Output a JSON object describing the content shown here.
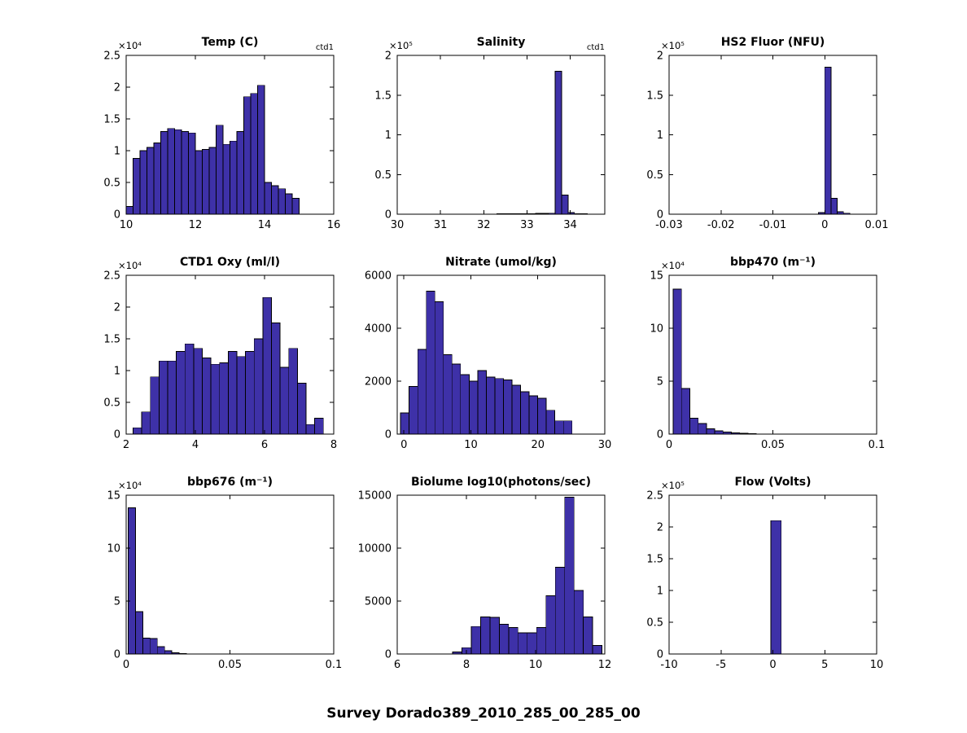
{
  "figure_title": "Survey Dorado389_2010_285_00_285_00",
  "style": {
    "bar_face_color": "#3E31A8",
    "bar_edge_color": "#000000",
    "axis_color": "#000000"
  },
  "chart_data": [
    {
      "type": "bar",
      "title": "Temp (C)",
      "annotation": "ctd1",
      "exponent_label": "×10⁴",
      "xlim": [
        10,
        16
      ],
      "xticks": [
        10,
        12,
        14,
        16
      ],
      "xtick_labels": [
        "10",
        "12",
        "14",
        "16"
      ],
      "ylim": [
        0,
        2.5
      ],
      "yticks": [
        0,
        0.5,
        1,
        1.5,
        2,
        2.5
      ],
      "ytick_labels": [
        "0",
        "0.5",
        "1",
        "1.5",
        "2",
        "2.5"
      ],
      "bin_start": 10.0,
      "bin_width": 0.2,
      "values": [
        0.12,
        0.88,
        1.0,
        1.05,
        1.12,
        1.3,
        1.35,
        1.33,
        1.3,
        1.28,
        1.0,
        1.02,
        1.05,
        1.4,
        1.1,
        1.15,
        1.3,
        1.85,
        1.9,
        2.03,
        0.5,
        0.45,
        0.4,
        0.32,
        0.25
      ]
    },
    {
      "type": "bar",
      "title": "Salinity",
      "annotation": "ctd1",
      "exponent_label": "×10⁵",
      "xlim": [
        30,
        34.8
      ],
      "xticks": [
        30,
        31,
        32,
        33,
        34
      ],
      "xtick_labels": [
        "30",
        "31",
        "32",
        "33",
        "34"
      ],
      "ylim": [
        0,
        2
      ],
      "yticks": [
        0,
        0.5,
        1,
        1.5,
        2
      ],
      "ytick_labels": [
        "0",
        "0.5",
        "1",
        "1.5",
        "2"
      ],
      "bin_start": 32.3,
      "bin_width": 0.15,
      "values": [
        0.004,
        0.004,
        0.005,
        0.006,
        0.007,
        0.008,
        0.009,
        0.01,
        0.012,
        1.8,
        0.24,
        0.02,
        0.008,
        0.004
      ]
    },
    {
      "type": "bar",
      "title": "HS2 Fluor (NFU)",
      "annotation": "",
      "exponent_label": "×10⁵",
      "xlim": [
        -0.03,
        0.01
      ],
      "xticks": [
        -0.03,
        -0.02,
        -0.01,
        0,
        0.01
      ],
      "xtick_labels": [
        "-0.03",
        "-0.02",
        "-0.01",
        "0",
        "0.01"
      ],
      "ylim": [
        0,
        2
      ],
      "yticks": [
        0,
        0.5,
        1,
        1.5,
        2
      ],
      "ytick_labels": [
        "0",
        "0.5",
        "1",
        "1.5",
        "2"
      ],
      "bin_start": -0.0012,
      "bin_width": 0.0012,
      "values": [
        0.02,
        1.85,
        0.2,
        0.03,
        0.012
      ]
    },
    {
      "type": "bar",
      "title": "CTD1 Oxy (ml/l)",
      "annotation": "",
      "exponent_label": "×10⁴",
      "xlim": [
        2,
        8
      ],
      "xticks": [
        2,
        4,
        6,
        8
      ],
      "xtick_labels": [
        "2",
        "4",
        "6",
        "8"
      ],
      "ylim": [
        0,
        2.5
      ],
      "yticks": [
        0,
        0.5,
        1,
        1.5,
        2,
        2.5
      ],
      "ytick_labels": [
        "0",
        "0.5",
        "1",
        "1.5",
        "2",
        "2.5"
      ],
      "bin_start": 2.2,
      "bin_width": 0.25,
      "values": [
        0.1,
        0.35,
        0.9,
        1.15,
        1.15,
        1.3,
        1.42,
        1.35,
        1.2,
        1.1,
        1.12,
        1.3,
        1.22,
        1.3,
        1.5,
        2.15,
        1.75,
        1.05,
        1.35,
        0.8,
        0.15,
        0.25
      ]
    },
    {
      "type": "bar",
      "title": "Nitrate (umol/kg)",
      "annotation": "",
      "exponent_label": "",
      "xlim": [
        -1,
        30
      ],
      "xticks": [
        0,
        10,
        20,
        30
      ],
      "xtick_labels": [
        "0",
        "10",
        "20",
        "30"
      ],
      "ylim": [
        0,
        6000
      ],
      "yticks": [
        0,
        2000,
        4000,
        6000
      ],
      "ytick_labels": [
        "0",
        "2000",
        "4000",
        "6000"
      ],
      "bin_start": -0.5,
      "bin_width": 1.28,
      "values": [
        800,
        1800,
        3200,
        5400,
        5000,
        3000,
        2650,
        2250,
        2000,
        2400,
        2150,
        2100,
        2050,
        1850,
        1600,
        1450,
        1350,
        900,
        500,
        500
      ]
    },
    {
      "type": "bar",
      "title": "bbp470 (m⁻¹)",
      "annotation": "",
      "exponent_label": "×10⁴",
      "xlim": [
        0,
        0.1
      ],
      "xticks": [
        0,
        0.05,
        0.1
      ],
      "xtick_labels": [
        "0",
        "0.05",
        "0.1"
      ],
      "ylim": [
        0,
        15
      ],
      "yticks": [
        0,
        5,
        10,
        15
      ],
      "ytick_labels": [
        "0",
        "5",
        "10",
        "15"
      ],
      "bin_start": 0.002,
      "bin_width": 0.004,
      "values": [
        13.7,
        4.3,
        1.5,
        1.0,
        0.5,
        0.3,
        0.2,
        0.12,
        0.08,
        0.05
      ]
    },
    {
      "type": "bar",
      "title": "bbp676 (m⁻¹)",
      "annotation": "",
      "exponent_label": "×10⁴",
      "xlim": [
        0,
        0.1
      ],
      "xticks": [
        0,
        0.05,
        0.1
      ],
      "xtick_labels": [
        "0",
        "0.05",
        "0.1"
      ],
      "ylim": [
        0,
        15
      ],
      "yticks": [
        0,
        5,
        10,
        15
      ],
      "ytick_labels": [
        "0",
        "5",
        "10",
        "15"
      ],
      "bin_start": 0.001,
      "bin_width": 0.0035,
      "values": [
        13.8,
        4.0,
        1.5,
        1.45,
        0.7,
        0.3,
        0.12,
        0.06
      ]
    },
    {
      "type": "bar",
      "title": "Biolume log10(photons/sec)",
      "annotation": "",
      "exponent_label": "",
      "xlim": [
        6,
        12
      ],
      "xticks": [
        6,
        8,
        10,
        12
      ],
      "xtick_labels": [
        "6",
        "8",
        "10",
        "12"
      ],
      "ylim": [
        0,
        15000
      ],
      "yticks": [
        0,
        5000,
        10000,
        15000
      ],
      "ytick_labels": [
        "0",
        "5000",
        "10000",
        "15000"
      ],
      "bin_start": 7.6,
      "bin_width": 0.27,
      "values": [
        200,
        600,
        2600,
        3500,
        3450,
        2800,
        2500,
        2000,
        2000,
        2500,
        5500,
        8200,
        14800,
        6000,
        3500,
        800
      ]
    },
    {
      "type": "bar",
      "title": "Flow (Volts)",
      "annotation": "",
      "exponent_label": "×10⁵",
      "xlim": [
        -10,
        10
      ],
      "xticks": [
        -10,
        -5,
        0,
        5,
        10
      ],
      "xtick_labels": [
        "-10",
        "-5",
        "0",
        "5",
        "10"
      ],
      "ylim": [
        0,
        2.5
      ],
      "yticks": [
        0,
        0.5,
        1,
        1.5,
        2,
        2.5
      ],
      "ytick_labels": [
        "0",
        "0.5",
        "1",
        "1.5",
        "2",
        "2.5"
      ],
      "bin_start": -0.2,
      "bin_width": 1.0,
      "values": [
        2.1
      ]
    }
  ]
}
